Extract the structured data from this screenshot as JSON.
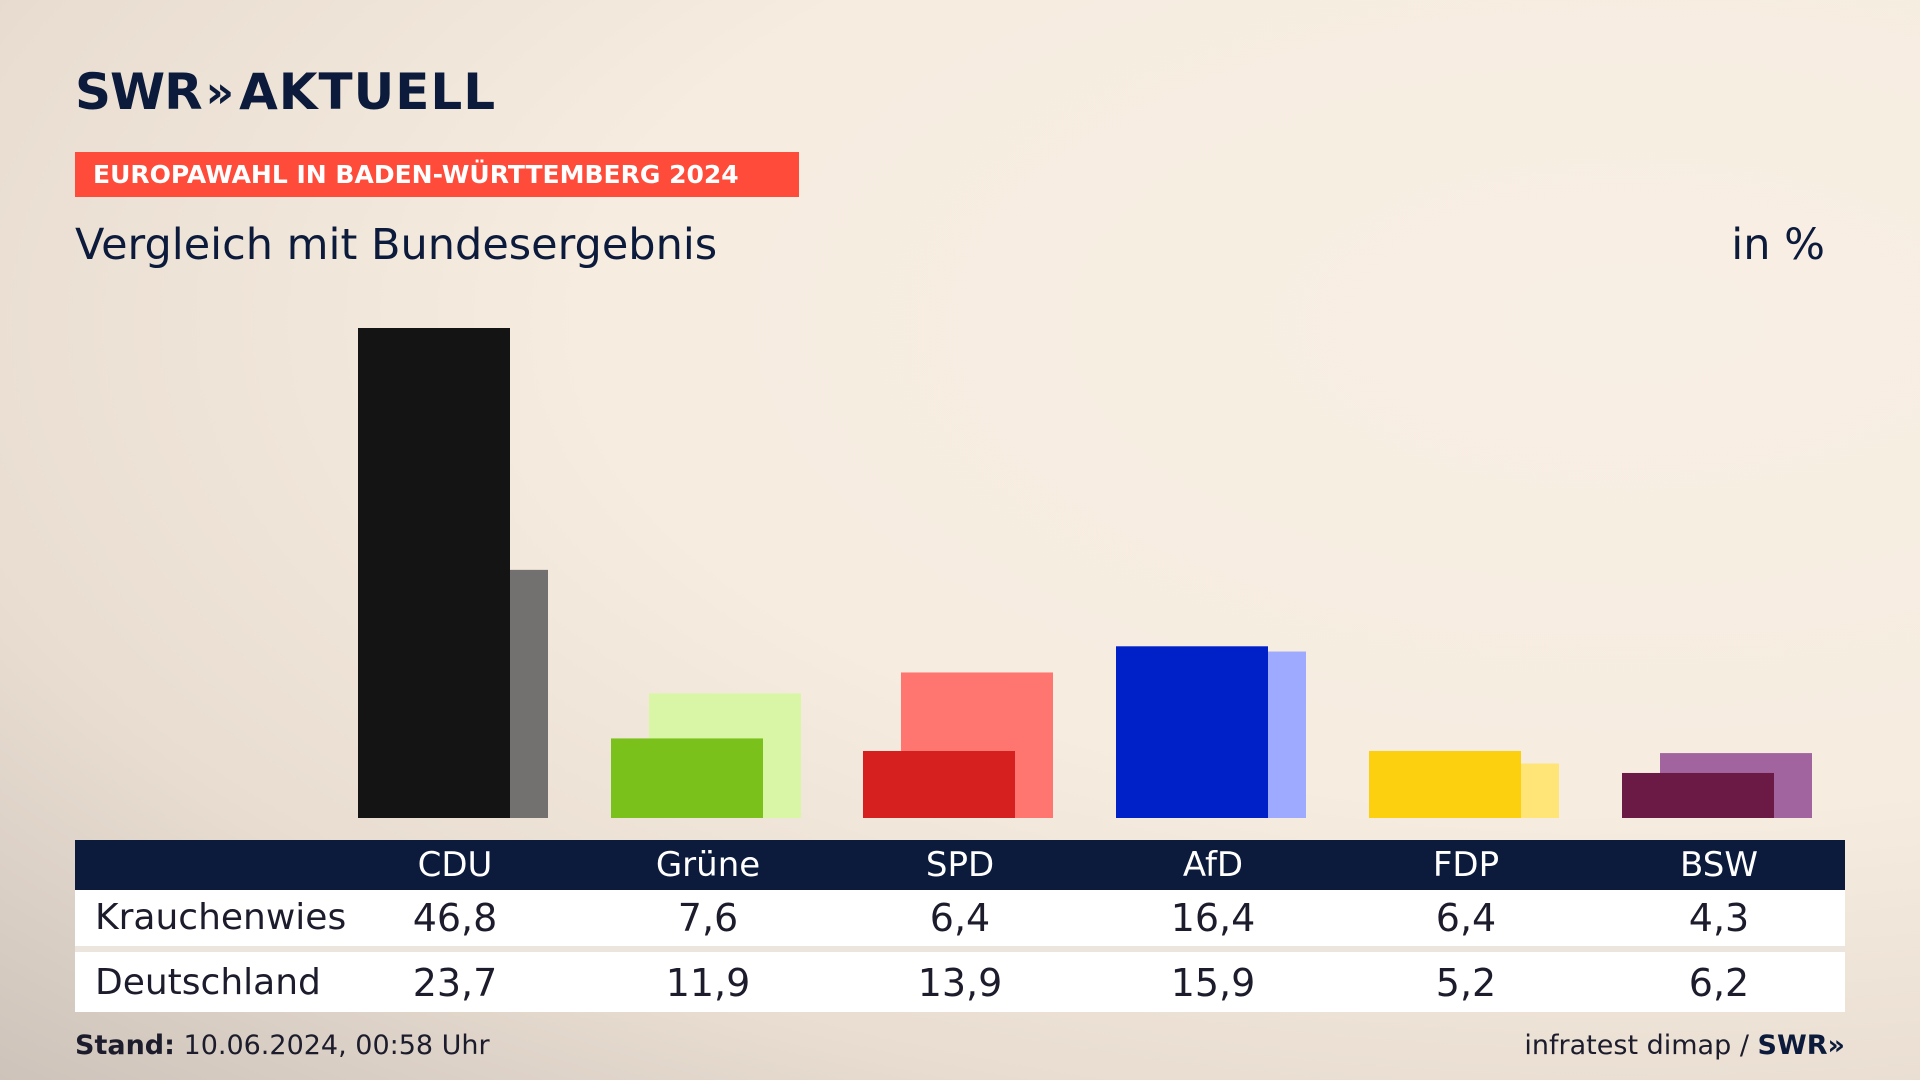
{
  "header": {
    "logo_text": "SWR",
    "logo_sep": "»",
    "logo_text2": "AKTUELL",
    "banner": "EUROPAWAHL IN BADEN-WÜRTTEMBERG 2024",
    "subtitle": "Vergleich mit Bundesergebnis",
    "unit": "in %"
  },
  "chart_data": {
    "type": "bar",
    "categories": [
      "CDU",
      "Grüne",
      "SPD",
      "AfD",
      "FDP",
      "BSW"
    ],
    "series": [
      {
        "name": "Krauchenwies",
        "values": [
          46.8,
          7.6,
          6.4,
          16.4,
          6.4,
          4.3
        ]
      },
      {
        "name": "Deutschland",
        "values": [
          23.7,
          11.9,
          13.9,
          15.9,
          5.2,
          6.2
        ]
      }
    ],
    "ylim": [
      0,
      46.8
    ],
    "colors_primary": [
      "#141414",
      "#7ac11c",
      "#d62020",
      "#0021c8",
      "#fdd00f",
      "#6b1a45"
    ],
    "colors_secondary": [
      "#737170",
      "#d8f6a6",
      "#ff7670",
      "#9eaaff",
      "#ffe477",
      "#a2649e"
    ]
  },
  "table": {
    "headers": [
      "CDU",
      "Grüne",
      "SPD",
      "AfD",
      "FDP",
      "BSW"
    ],
    "rows": [
      {
        "label": "Krauchenwies",
        "values": [
          "46,8",
          "7,6",
          "6,4",
          "16,4",
          "6,4",
          "4,3"
        ]
      },
      {
        "label": "Deutschland",
        "values": [
          "23,7",
          "11,9",
          "13,9",
          "15,9",
          "5,2",
          "6,2"
        ]
      }
    ]
  },
  "footer": {
    "stand_label": "Stand:",
    "stand_value": "10.06.2024, 00:58 Uhr",
    "source": "infratest dimap /",
    "source_brand": "SWR»"
  }
}
